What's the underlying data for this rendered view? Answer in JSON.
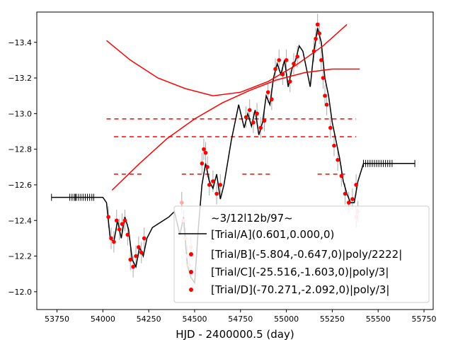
{
  "chart_data": {
    "type": "scatter",
    "xlabel": "HJD - 2400000.5 (day)",
    "ylabel": "",
    "xlim": [
      53640,
      55800
    ],
    "ylim": [
      -13.57,
      -11.9
    ],
    "y_inverted": true,
    "x_ticks": [
      53750,
      54000,
      54250,
      54500,
      54750,
      55000,
      55250,
      55500,
      55750
    ],
    "y_ticks": [
      -13.4,
      -13.2,
      -13.0,
      -12.8,
      -12.6,
      -12.4,
      -12.2,
      -12.0
    ],
    "x_tick_labels": [
      "53750",
      "54000",
      "54250",
      "54500",
      "54750",
      "55000",
      "55250",
      "55500",
      "55750"
    ],
    "y_tick_labels": [
      "−13.4",
      "−13.2",
      "−13.0",
      "−12.8",
      "−12.6",
      "−12.4",
      "−12.2",
      "−12.0"
    ],
    "grid": false,
    "legend": {
      "placement": "bottom-right",
      "title": "~3/12l12b/97~",
      "entries": [
        "[Trial/A](0.601,0.000,0)",
        "[Trial/B](-5.804,-0.647,0)|poly/2222|",
        "[Trial/C](-25.516,-1.603,0)|poly/3|",
        "[Trial/D](-70.271,-2.092,0)|poly/3|"
      ]
    },
    "series": [
      {
        "kind": "model-black-line",
        "color": "#000000",
        "x": [
          53720,
          53850,
          53950,
          54000,
          54020,
          54040,
          54060,
          54080,
          54100,
          54120,
          54140,
          54160,
          54180,
          54200,
          54220,
          54240,
          54270,
          54300,
          54330,
          54360,
          54390,
          54420,
          54440,
          54460,
          54480,
          54500,
          54520,
          54540,
          54560,
          54580,
          54600,
          54620,
          54640,
          54660,
          54700,
          54740,
          54770,
          54790,
          54810,
          54830,
          54850,
          54870,
          54890,
          54910,
          54930,
          54950,
          54970,
          54990,
          55010,
          55030,
          55050,
          55070,
          55090,
          55110,
          55130,
          55150,
          55170,
          55190,
          55210,
          55230,
          55250,
          55270,
          55290,
          55310,
          55330,
          55350,
          55370,
          55390,
          55420,
          55700
        ],
        "y": [
          -12.53,
          -12.53,
          -12.53,
          -12.53,
          -12.5,
          -12.3,
          -12.28,
          -12.4,
          -12.3,
          -12.42,
          -12.35,
          -12.18,
          -12.14,
          -12.25,
          -12.2,
          -12.3,
          -12.36,
          -12.38,
          -12.4,
          -12.42,
          -12.45,
          -12.32,
          -12.42,
          -12.15,
          -12.08,
          -12.05,
          -12.35,
          -12.6,
          -12.72,
          -12.62,
          -12.58,
          -12.66,
          -12.52,
          -12.6,
          -12.85,
          -13.05,
          -12.92,
          -13.0,
          -12.93,
          -13.02,
          -12.88,
          -12.95,
          -13.1,
          -13.05,
          -13.2,
          -13.28,
          -13.22,
          -13.3,
          -13.15,
          -13.25,
          -13.3,
          -13.38,
          -13.35,
          -13.25,
          -13.15,
          -13.35,
          -13.48,
          -13.4,
          -13.2,
          -13.1,
          -12.95,
          -12.85,
          -12.75,
          -12.62,
          -12.55,
          -12.5,
          -12.5,
          -12.62,
          -12.72,
          -12.72
        ]
      },
      {
        "kind": "data-points-red",
        "color": "#ff0000",
        "x": [
          54030,
          54045,
          54060,
          54075,
          54090,
          54105,
          54120,
          54135,
          54150,
          54165,
          54180,
          54195,
          54210,
          54225,
          54540,
          54550,
          54560,
          54570,
          54580,
          54600,
          54620,
          54640,
          54780,
          54800,
          54820,
          54840,
          54860,
          54880,
          54900,
          54920,
          54940,
          54960,
          54980,
          55000,
          55020,
          55040,
          55060,
          55150,
          55160,
          55170,
          55180,
          55190,
          55200,
          55210,
          55220,
          55240,
          55260,
          55280,
          55300,
          55320,
          55340,
          55360,
          55380
        ],
        "y": [
          -12.42,
          -12.3,
          -12.28,
          -12.4,
          -12.35,
          -12.38,
          -12.4,
          -12.32,
          -12.18,
          -12.14,
          -12.2,
          -12.25,
          -12.22,
          -12.3,
          -12.72,
          -12.8,
          -12.78,
          -12.7,
          -12.6,
          -12.62,
          -12.55,
          -12.6,
          -12.98,
          -13.02,
          -12.95,
          -13.0,
          -12.92,
          -12.96,
          -13.12,
          -13.08,
          -13.25,
          -13.3,
          -13.22,
          -13.3,
          -13.18,
          -13.28,
          -13.32,
          -13.35,
          -13.42,
          -13.5,
          -13.45,
          -13.3,
          -13.2,
          -13.1,
          -13.05,
          -12.92,
          -12.82,
          -12.74,
          -12.65,
          -12.55,
          -12.5,
          -12.52,
          -12.6
        ]
      },
      {
        "kind": "data-points-pink",
        "color": "#ffaaaa",
        "x": [
          54430,
          54440,
          54450,
          54460,
          54470,
          54480,
          55380,
          55390
        ],
        "y": [
          -12.5,
          -12.4,
          -12.3,
          -12.2,
          -12.15,
          -12.25,
          -12.42,
          -12.45
        ]
      },
      {
        "kind": "fit-curve-1",
        "color": "#ff0000",
        "x": [
          54020,
          54150,
          54300,
          54450,
          54600,
          54750,
          54900,
          55050,
          55200,
          55330
        ],
        "y": [
          -13.41,
          -13.3,
          -13.2,
          -13.14,
          -13.1,
          -13.12,
          -13.18,
          -13.27,
          -13.38,
          -13.5
        ]
      },
      {
        "kind": "fit-curve-2",
        "color": "#ff0000",
        "x": [
          54050,
          54200,
          54350,
          54500,
          54650,
          54800,
          54950,
          55100,
          55250,
          55400
        ],
        "y": [
          -12.57,
          -12.72,
          -12.86,
          -12.97,
          -13.06,
          -13.13,
          -13.19,
          -13.23,
          -13.25,
          -13.25
        ]
      }
    ],
    "dashed_levels": [
      {
        "y": -12.97,
        "x": [
          54020,
          55380
        ]
      },
      {
        "y": -12.87,
        "x": [
          54060,
          55380
        ]
      },
      {
        "y": -12.66,
        "x": [
          54060,
          54230
        ]
      },
      {
        "y": -12.66,
        "x": [
          54430,
          54580
        ]
      },
      {
        "y": -12.66,
        "x": [
          54760,
          54930
        ]
      },
      {
        "y": -12.66,
        "x": [
          55170,
          55320
        ]
      }
    ]
  }
}
